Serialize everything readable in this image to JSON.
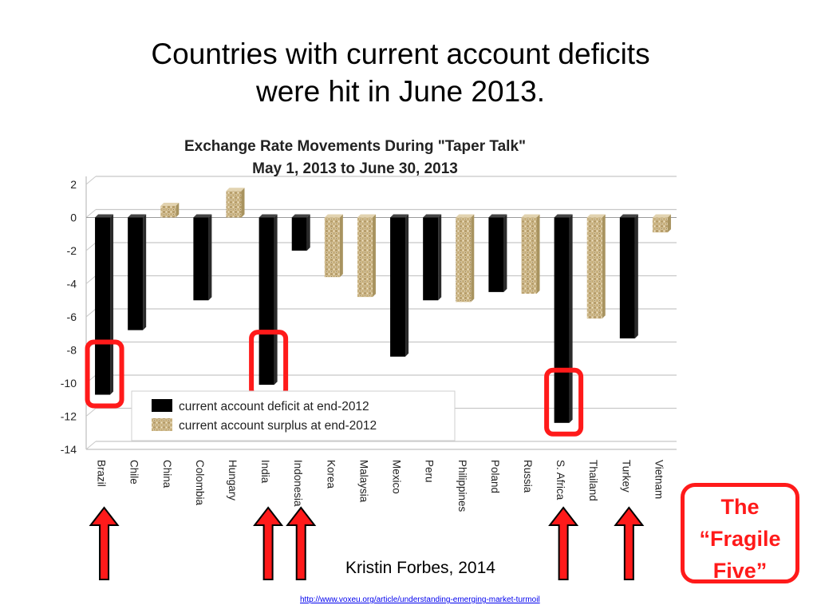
{
  "slide": {
    "title_line1": "Countries with current account deficits",
    "title_line2": "were hit in June 2013.",
    "credit": "Kristin Forbes, 2014",
    "source_url": "http://www.voxeu.org/article/understanding-emerging-market-turmoil",
    "callout_line1": "The",
    "callout_line2": "“Fragile",
    "callout_line3": "Five”"
  },
  "chart_data": {
    "type": "bar",
    "title": "Exchange Rate Movements During \"Taper Talk\"",
    "subtitle": "May 1, 2013 to June 30, 2013",
    "categories": [
      "Brazil",
      "Chile",
      "China",
      "Colombia",
      "Hungary",
      "India",
      "Indonesia",
      "Korea",
      "Malaysia",
      "Mexico",
      "Peru",
      "Philippines",
      "Poland",
      "Russia",
      "S. Africa",
      "Thailand",
      "Turkey",
      "Vietnam"
    ],
    "values": [
      -10.7,
      -6.8,
      0.7,
      -5.0,
      1.6,
      -10.1,
      -2.0,
      -3.6,
      -4.8,
      -8.4,
      -5.0,
      -5.1,
      -4.5,
      -4.6,
      -12.4,
      -6.1,
      -7.3,
      -0.9
    ],
    "account_status": [
      "deficit",
      "deficit",
      "surplus",
      "deficit",
      "surplus",
      "deficit",
      "deficit",
      "surplus",
      "surplus",
      "deficit",
      "deficit",
      "surplus",
      "deficit",
      "surplus",
      "deficit",
      "surplus",
      "deficit",
      "surplus"
    ],
    "highlighted": [
      "Brazil",
      "India",
      "S. Africa"
    ],
    "arrowed": [
      "Brazil",
      "India",
      "Indonesia",
      "S. Africa",
      "Turkey"
    ],
    "legend": [
      {
        "key": "deficit",
        "label": "current account deficit at end-2012",
        "color": "#000000"
      },
      {
        "key": "surplus",
        "label": "current account surplus at end-2012",
        "color": "#cdb98b"
      }
    ],
    "legend_position": "bottom-center",
    "ylim": [
      -14,
      2
    ],
    "yticks": [
      2,
      0,
      -2,
      -4,
      -6,
      -8,
      -10,
      -12,
      -14
    ],
    "grid": true,
    "colors": {
      "deficit": "#000000",
      "surplus": "#cdb98b",
      "highlight": "#ff1a1a",
      "arrow": "#ff1a1a"
    }
  }
}
